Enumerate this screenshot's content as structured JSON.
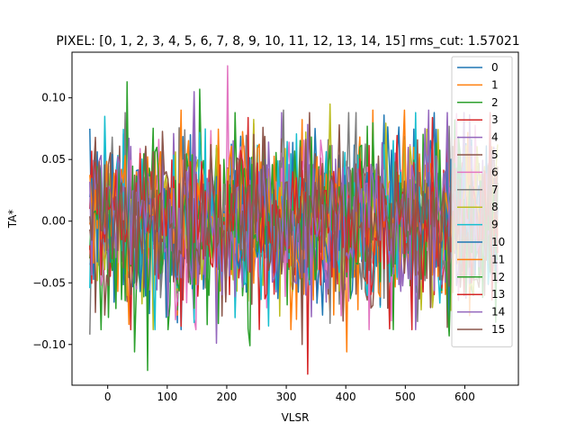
{
  "chart_data": {
    "type": "line",
    "title": "PIXEL: [0, 1, 2, 3, 4, 5, 6, 7, 8, 9, 10, 11, 12, 13, 14, 15]   rms_cut: 1.57021",
    "xlabel": "VLSR",
    "ylabel": "TA*",
    "xlim": [
      -60,
      690
    ],
    "ylim": [
      -0.133,
      0.137
    ],
    "xticks": [
      0,
      100,
      200,
      300,
      400,
      500,
      600
    ],
    "xtick_labels": [
      "0",
      "100",
      "200",
      "300",
      "400",
      "500",
      "600"
    ],
    "yticks": [
      -0.1,
      -0.05,
      0.0,
      0.05,
      0.1
    ],
    "ytick_labels": [
      "−0.10",
      "−0.05",
      "0.00",
      "0.05",
      "0.10"
    ],
    "grid": false,
    "legend_position": "upper right",
    "x_range": [
      -30,
      655
    ],
    "points_per_series": 220,
    "noise_rms": 0.033,
    "series": [
      {
        "name": "0",
        "color": "#1f77b4",
        "peaks": [
          [
            -30,
            0.075
          ]
        ]
      },
      {
        "name": "1",
        "color": "#ff7f0e",
        "peaks": [
          [
            402,
            -0.106
          ],
          [
            445,
            0.09
          ]
        ]
      },
      {
        "name": "2",
        "color": "#2ca02c",
        "peaks": [
          [
            32,
            0.113
          ],
          [
            68,
            -0.121
          ],
          [
            155,
            0.107
          ],
          [
            437,
            0.077
          ]
        ]
      },
      {
        "name": "3",
        "color": "#d62728",
        "peaks": [
          [
            337,
            -0.124
          ],
          [
            540,
            0.07
          ]
        ]
      },
      {
        "name": "4",
        "color": "#9467bd",
        "peaks": [
          [
            110,
            0.071
          ],
          [
            145,
            0.105
          ]
        ]
      },
      {
        "name": "5",
        "color": "#8c564b",
        "peaks": [
          [
            -20,
            -0.074
          ]
        ]
      },
      {
        "name": "6",
        "color": "#e377c2",
        "peaks": [
          [
            200,
            0.126
          ],
          [
            305,
            0.064
          ]
        ]
      },
      {
        "name": "7",
        "color": "#7f7f7f",
        "peaks": [
          [
            -30,
            -0.092
          ],
          [
            130,
            0.074
          ],
          [
            295,
            0.09
          ]
        ]
      },
      {
        "name": "8",
        "color": "#bcbd22",
        "peaks": [
          [
            375,
            0.095
          ]
        ]
      },
      {
        "name": "9",
        "color": "#17becf",
        "peaks": [
          [
            -5,
            0.085
          ],
          [
            270,
            -0.085
          ]
        ]
      },
      {
        "name": "10",
        "color": "#1f77b4",
        "peaks": [
          [
            140,
            0.07
          ],
          [
            612,
            0.066
          ]
        ]
      },
      {
        "name": "11",
        "color": "#ff7f0e",
        "peaks": [
          [
            122,
            0.09
          ],
          [
            500,
            0.09
          ]
        ]
      },
      {
        "name": "12",
        "color": "#2ca02c",
        "peaks": [
          [
            46,
            -0.106
          ],
          [
            240,
            -0.101
          ],
          [
            573,
            -0.093
          ]
        ]
      },
      {
        "name": "13",
        "color": "#d62728",
        "peaks": [
          [
            545,
            0.084
          ]
        ]
      },
      {
        "name": "14",
        "color": "#9467bd",
        "peaks": [
          [
            183,
            -0.099
          ],
          [
            538,
            0.09
          ]
        ]
      },
      {
        "name": "15",
        "color": "#8c564b",
        "peaks": [
          [
            326,
            -0.1
          ],
          [
            650,
            0.055
          ]
        ]
      }
    ]
  }
}
